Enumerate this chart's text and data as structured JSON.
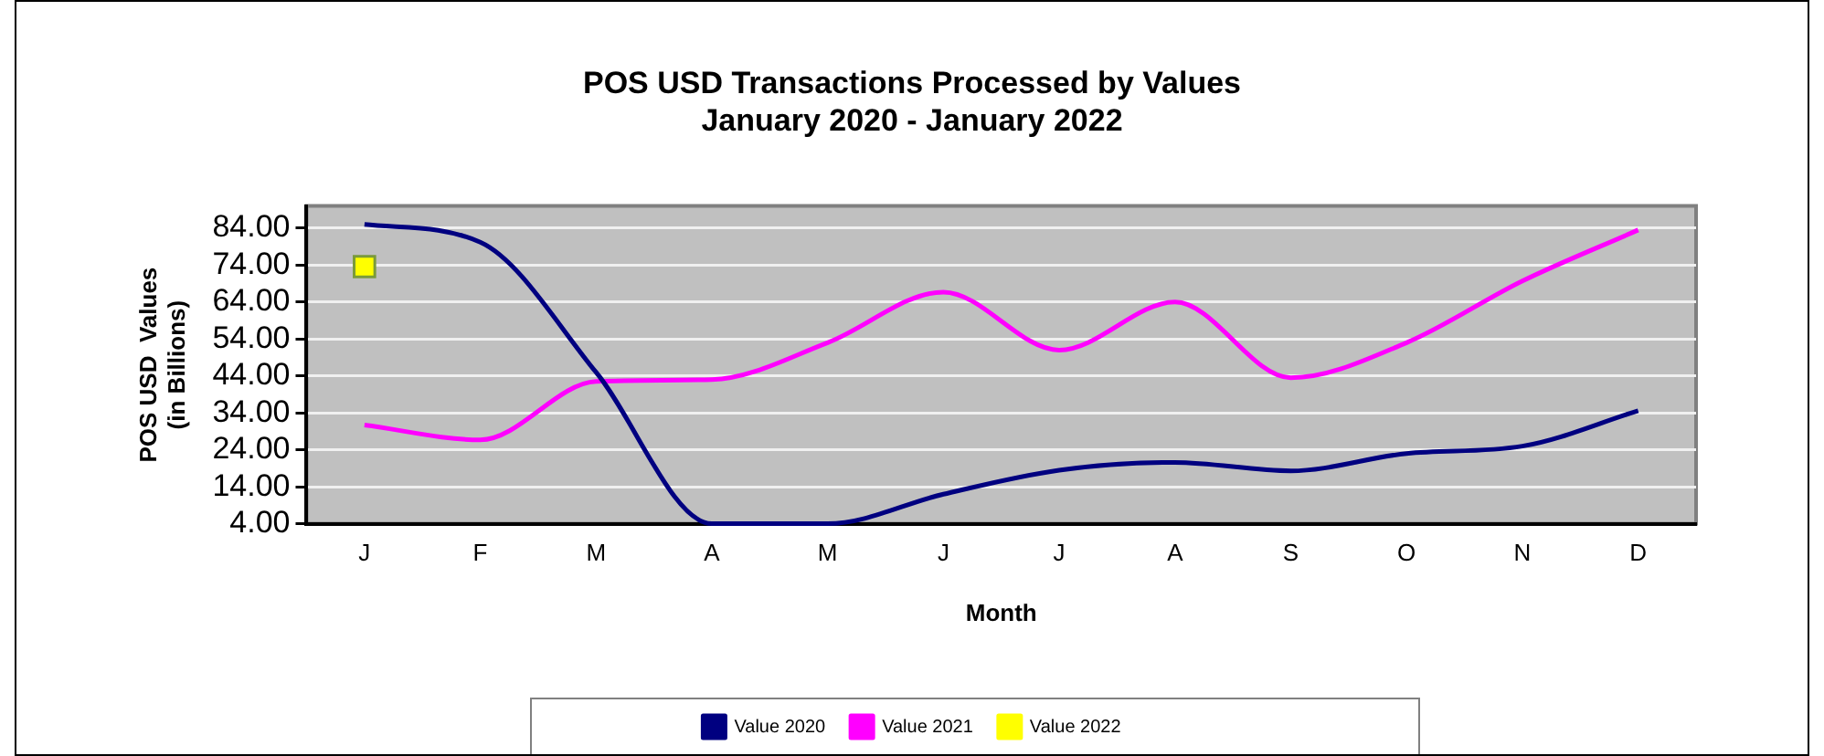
{
  "chart_data": {
    "type": "line",
    "title": [
      "POS USD Transactions Processed by Values",
      "January 2020 - January 2022"
    ],
    "xlabel": "Month",
    "ylabel": [
      "POS USD  Values",
      "(in Billions)"
    ],
    "categories": [
      "J",
      "F",
      "M",
      "A",
      "M",
      "J",
      "J",
      "A",
      "S",
      "O",
      "N",
      "D"
    ],
    "series": [
      {
        "name": "Value 2020",
        "color": "#000080",
        "marker": "none",
        "values": [
          85,
          80.2,
          45,
          4,
          4,
          12,
          18.5,
          20.6,
          18.3,
          23,
          25,
          34.6
        ]
      },
      {
        "name": "Value 2021",
        "color": "#ff00ff",
        "marker": "none",
        "values": [
          30.7,
          26.7,
          42.5,
          43,
          53,
          66.7,
          51,
          64,
          43.5,
          53,
          69.7,
          83.5
        ]
      },
      {
        "name": "Value 2022",
        "color": "#ffff00",
        "marker": "square",
        "values": [
          73.6,
          null,
          null,
          null,
          null,
          null,
          null,
          null,
          null,
          null,
          null,
          null
        ]
      }
    ],
    "ylim": [
      4,
      90
    ],
    "yticks": [
      {
        "value": 4,
        "label": "4.00"
      },
      {
        "value": 14,
        "label": "14.00"
      },
      {
        "value": 24,
        "label": "24.00"
      },
      {
        "value": 34,
        "label": "34.00"
      },
      {
        "value": 44,
        "label": "44.00"
      },
      {
        "value": 54,
        "label": "54.00"
      },
      {
        "value": 64,
        "label": "64.00"
      },
      {
        "value": 74,
        "label": "74.00"
      },
      {
        "value": 84,
        "label": "84.00"
      }
    ],
    "grid": "y",
    "legend": "bottom",
    "line_style": "solid"
  }
}
